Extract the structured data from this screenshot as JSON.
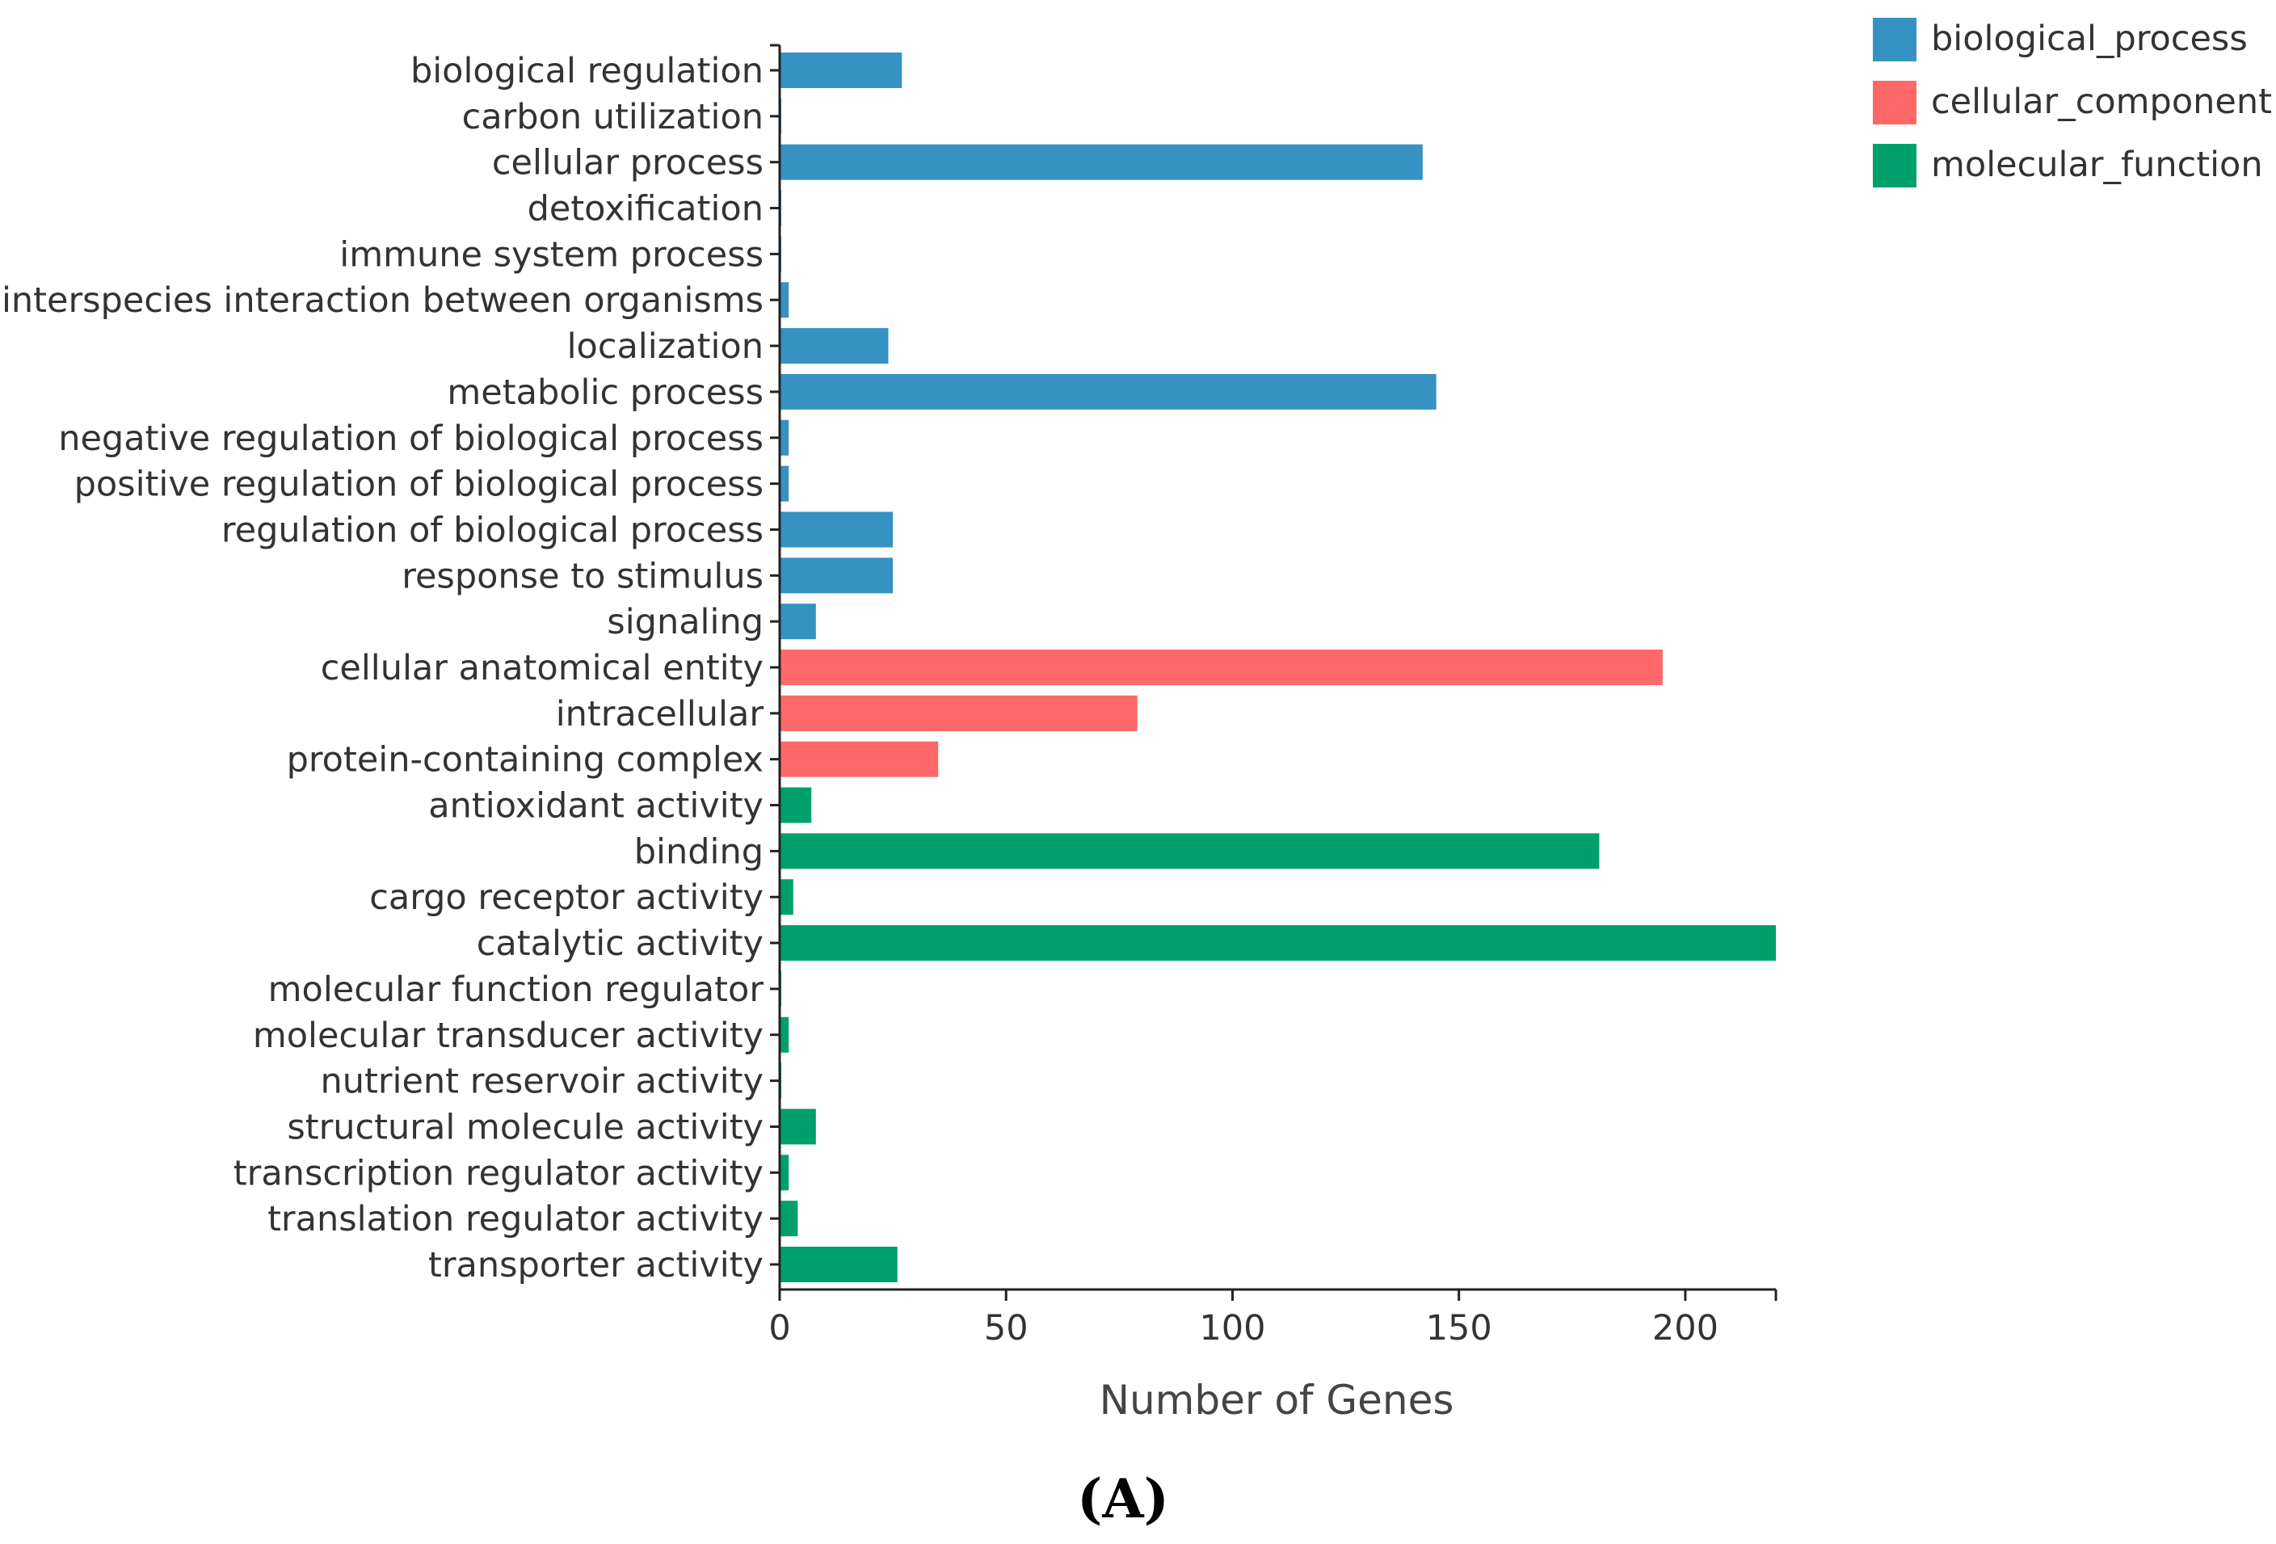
{
  "chart_data": {
    "type": "bar",
    "orientation": "horizontal",
    "title": "",
    "xlabel": "Number of Genes",
    "ylabel": "",
    "xlim": [
      0,
      220
    ],
    "xticks": [
      0,
      50,
      100,
      150,
      200
    ],
    "panel_label": "(A)",
    "legend_position": "top-right",
    "groups": [
      {
        "key": "biological_process",
        "name": "biological_process",
        "color": "#3592c2"
      },
      {
        "key": "cellular_component",
        "name": "cellular_component",
        "color": "#ff6868"
      },
      {
        "key": "molecular_function",
        "name": "molecular_function",
        "color": "#00a06c"
      }
    ],
    "bars": [
      {
        "label": "biological regulation",
        "value": 27,
        "group": "biological_process"
      },
      {
        "label": "carbon utilization",
        "value": 0.3,
        "group": "biological_process"
      },
      {
        "label": "cellular process",
        "value": 142,
        "group": "biological_process"
      },
      {
        "label": "detoxification",
        "value": 0.3,
        "group": "biological_process"
      },
      {
        "label": "immune system process",
        "value": 0.3,
        "group": "biological_process"
      },
      {
        "label": "interspecies interaction between organisms",
        "value": 2,
        "group": "biological_process"
      },
      {
        "label": "localization",
        "value": 24,
        "group": "biological_process"
      },
      {
        "label": "metabolic process",
        "value": 145,
        "group": "biological_process"
      },
      {
        "label": "negative regulation of biological process",
        "value": 2,
        "group": "biological_process"
      },
      {
        "label": "positive regulation of biological process",
        "value": 2,
        "group": "biological_process"
      },
      {
        "label": "regulation of biological process",
        "value": 25,
        "group": "biological_process"
      },
      {
        "label": "response to stimulus",
        "value": 25,
        "group": "biological_process"
      },
      {
        "label": "signaling",
        "value": 8,
        "group": "biological_process"
      },
      {
        "label": "cellular anatomical entity",
        "value": 195,
        "group": "cellular_component"
      },
      {
        "label": "intracellular",
        "value": 79,
        "group": "cellular_component"
      },
      {
        "label": "protein-containing complex",
        "value": 35,
        "group": "cellular_component"
      },
      {
        "label": "antioxidant activity",
        "value": 7,
        "group": "molecular_function"
      },
      {
        "label": "binding",
        "value": 181,
        "group": "molecular_function"
      },
      {
        "label": "cargo receptor activity",
        "value": 3,
        "group": "molecular_function"
      },
      {
        "label": "catalytic activity",
        "value": 220,
        "group": "molecular_function"
      },
      {
        "label": "molecular function regulator",
        "value": 0.3,
        "group": "molecular_function"
      },
      {
        "label": "molecular transducer activity",
        "value": 2,
        "group": "molecular_function"
      },
      {
        "label": "nutrient reservoir activity",
        "value": 0.3,
        "group": "molecular_function"
      },
      {
        "label": "structural molecule activity",
        "value": 8,
        "group": "molecular_function"
      },
      {
        "label": "transcription regulator activity",
        "value": 2,
        "group": "molecular_function"
      },
      {
        "label": "translation regulator activity",
        "value": 4,
        "group": "molecular_function"
      },
      {
        "label": "transporter activity",
        "value": 26,
        "group": "molecular_function"
      }
    ]
  }
}
